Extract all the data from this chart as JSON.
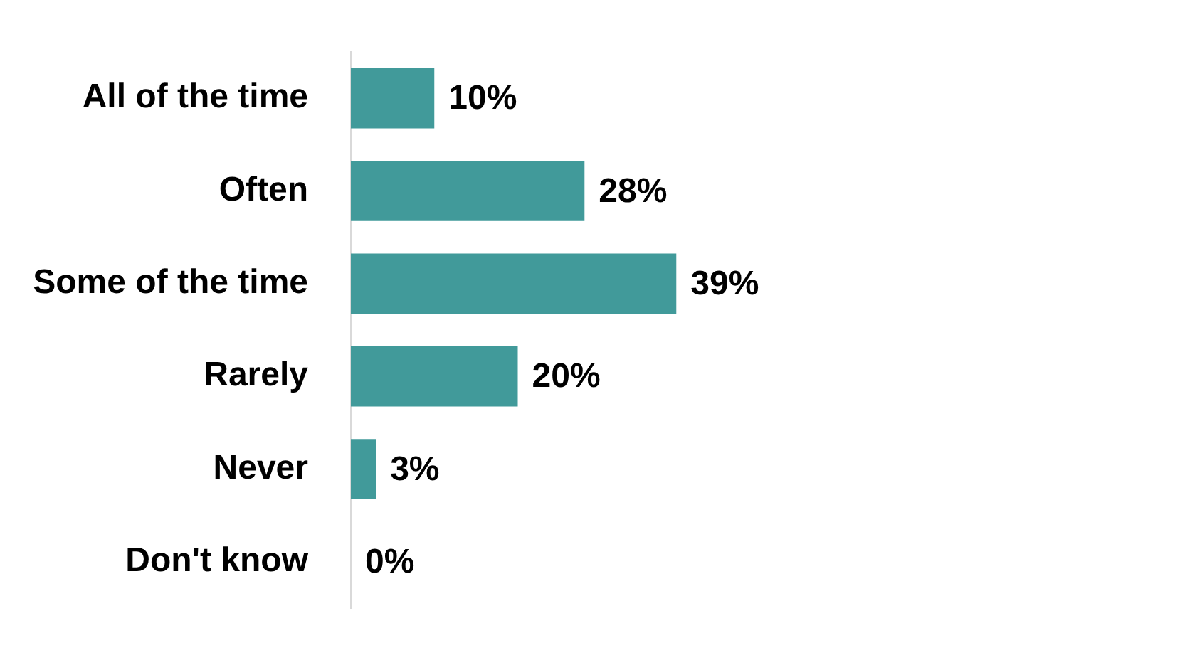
{
  "chart_data": {
    "type": "bar",
    "orientation": "horizontal",
    "categories": [
      "All of the time",
      "Often",
      "Some of the time",
      "Rarely",
      "Never",
      "Don't know"
    ],
    "values": [
      10,
      28,
      39,
      20,
      3,
      0
    ],
    "value_labels": [
      "10%",
      "28%",
      "39%",
      "20%",
      "3%",
      "0%"
    ],
    "color": "#419a9a",
    "legend": false,
    "tick_labels": "y"
  }
}
